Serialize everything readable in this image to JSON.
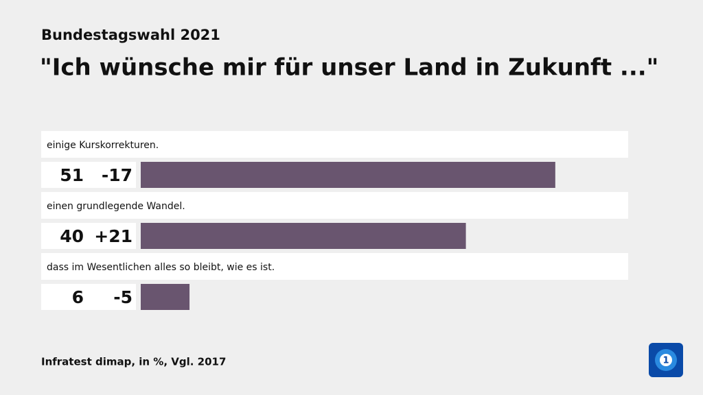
{
  "chart_data": {
    "type": "bar",
    "subtitle": "Bundestagswahl 2021",
    "title": "\"Ich wünsche mir für unser Land in Zukunft ...\"",
    "categories": [
      "einige Kurskorrekturen.",
      "einen grundlegende Wandel.",
      "dass im Wesentlichen alles so bleibt, wie es ist."
    ],
    "values": [
      51,
      40,
      6
    ],
    "changes": [
      "-17",
      "+21",
      "-5"
    ],
    "color": "#69556f",
    "source": "Infratest dimap, in %, Vgl. 2017"
  }
}
